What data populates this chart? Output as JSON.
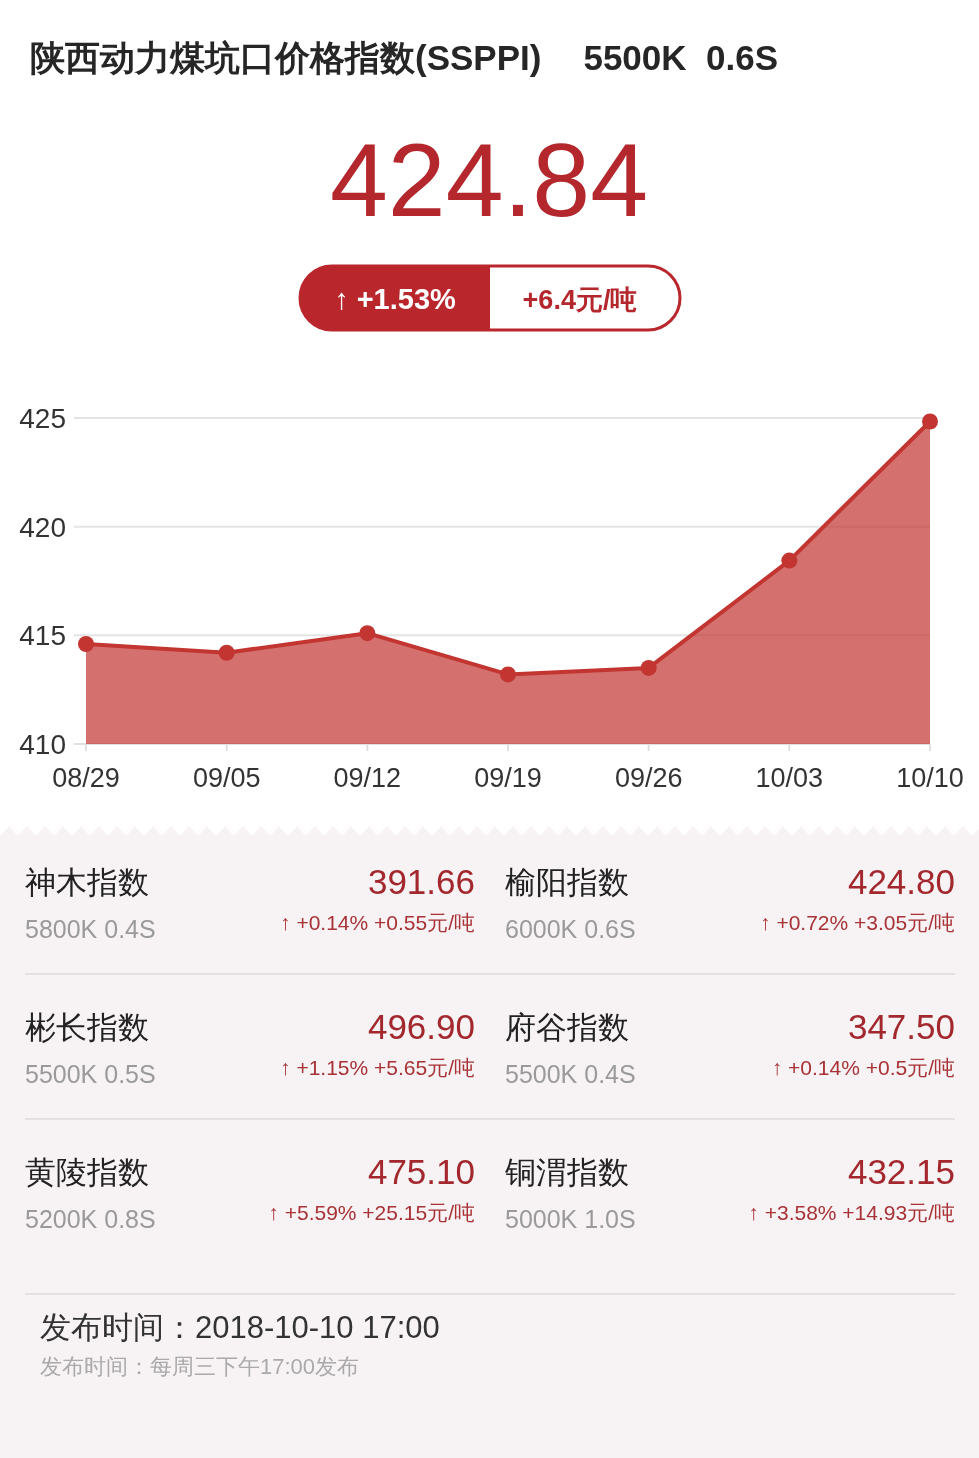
{
  "chart_data": [
    {
      "type": "area",
      "title": "陕西动力煤坑口价格指数(SSPPI)",
      "subtitle": "5500K  0.6S",
      "annotations": [
        "424.84",
        "↑ +1.53%",
        "+6.4元/吨"
      ],
      "categories": [
        "08/29",
        "09/05",
        "09/12",
        "09/19",
        "09/26",
        "10/03",
        "10/10"
      ],
      "series": [
        {
          "color": "#c23531",
          "values": [
            414.6,
            414.2,
            415.1,
            413.2,
            413.5,
            418.44,
            424.84
          ]
        }
      ],
      "ylim": [
        410,
        425
      ],
      "yticks": [
        410,
        415,
        420,
        425
      ],
      "grid": "y",
      "marker": "circle"
    },
    {
      "type": "other",
      "annotations": [
        "神木指数",
        "5800K 0.4S",
        "391.66",
        "↑ +0.14% +0.55元/吨",
        "榆阳指数",
        "6000K 0.6S",
        "424.80",
        "↑ +0.72% +3.05元/吨",
        "彬长指数",
        "5500K 0.5S",
        "496.90",
        "↑ +1.15% +5.65元/吨",
        "府谷指数",
        "5500K 0.4S",
        "347.50",
        "↑ +0.14% +0.5元/吨",
        "黄陵指数",
        "5200K 0.8S",
        "475.10",
        "↑ +5.59% +25.15元/吨",
        "铜渭指数",
        "5000K 1.0S",
        "432.15",
        "↑ +3.58% +14.93元/吨",
        "发布时间：2018-10-10 17:00",
        "发布时间：每周三下午17:00发布"
      ]
    }
  ]
}
